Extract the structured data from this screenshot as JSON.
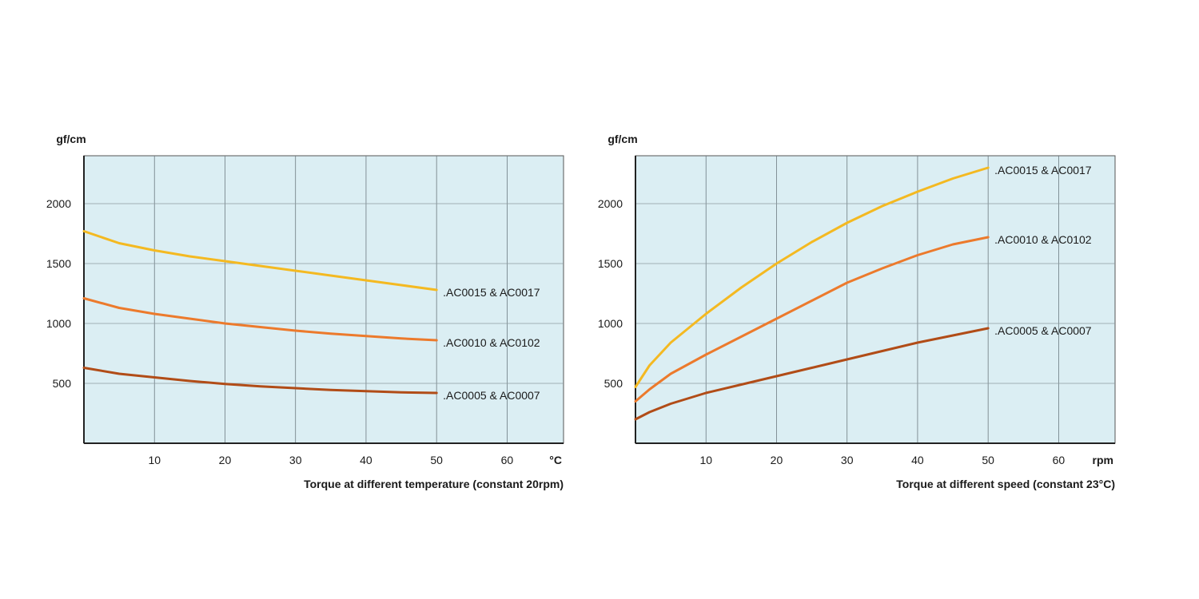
{
  "chart_data": [
    {
      "type": "line",
      "ylabel": "gf/cm",
      "xlabel": "°C",
      "caption": "Torque at different temperature (constant 20rpm)",
      "xlim": [
        0,
        68
      ],
      "ylim": [
        0,
        2400
      ],
      "xticks": [
        10,
        20,
        30,
        40,
        50,
        60
      ],
      "yticks": [
        500,
        1000,
        1500,
        2000
      ],
      "grid": true,
      "plot_background": "#dbeef3",
      "series": [
        {
          "name": ".AC0015 & AC0017",
          "color": "#f4b921",
          "x": [
            0,
            5,
            10,
            15,
            20,
            25,
            30,
            35,
            40,
            45,
            50
          ],
          "y": [
            1770,
            1670,
            1610,
            1560,
            1520,
            1480,
            1440,
            1400,
            1360,
            1320,
            1280
          ]
        },
        {
          "name": ".AC0010 & AC0102",
          "color": "#ec7a2c",
          "x": [
            0,
            5,
            10,
            15,
            20,
            25,
            30,
            35,
            40,
            45,
            50
          ],
          "y": [
            1210,
            1130,
            1080,
            1040,
            1000,
            970,
            940,
            915,
            895,
            875,
            860
          ]
        },
        {
          "name": ".AC0005 & AC0007",
          "color": "#b14c17",
          "x": [
            0,
            5,
            10,
            15,
            20,
            25,
            30,
            35,
            40,
            45,
            50
          ],
          "y": [
            630,
            580,
            550,
            520,
            495,
            475,
            460,
            445,
            435,
            425,
            420
          ]
        }
      ]
    },
    {
      "type": "line",
      "ylabel": "gf/cm",
      "xlabel": "rpm",
      "caption": "Torque at different speed (constant 23°C)",
      "xlim": [
        0,
        68
      ],
      "ylim": [
        0,
        2400
      ],
      "xticks": [
        10,
        20,
        30,
        40,
        50,
        60
      ],
      "yticks": [
        500,
        1000,
        1500,
        2000
      ],
      "grid": true,
      "plot_background": "#dbeef3",
      "series": [
        {
          "name": ".AC0015 & AC0017",
          "color": "#f4b921",
          "x": [
            0,
            2,
            5,
            10,
            15,
            20,
            25,
            30,
            35,
            40,
            45,
            50
          ],
          "y": [
            470,
            650,
            840,
            1080,
            1300,
            1500,
            1680,
            1840,
            1980,
            2100,
            2210,
            2300
          ]
        },
        {
          "name": ".AC0010 & AC0102",
          "color": "#ec7a2c",
          "x": [
            0,
            2,
            5,
            10,
            15,
            20,
            25,
            30,
            35,
            40,
            45,
            50
          ],
          "y": [
            350,
            450,
            580,
            740,
            890,
            1040,
            1190,
            1340,
            1460,
            1570,
            1660,
            1720
          ]
        },
        {
          "name": ".AC0005 & AC0007",
          "color": "#b14c17",
          "x": [
            0,
            2,
            5,
            10,
            15,
            20,
            25,
            30,
            35,
            40,
            45,
            50
          ],
          "y": [
            200,
            260,
            330,
            420,
            490,
            560,
            630,
            700,
            770,
            840,
            900,
            960
          ]
        }
      ]
    }
  ]
}
